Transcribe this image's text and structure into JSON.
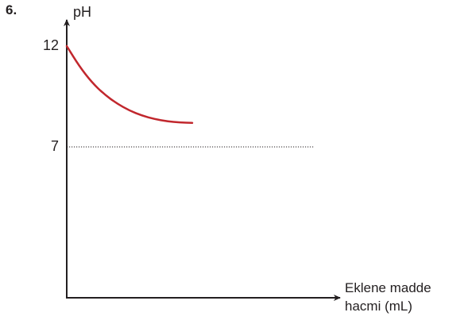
{
  "question_number": "6.",
  "chart_data": {
    "type": "line",
    "ylabel": "pH",
    "xlabel_lines": [
      "Eklene madde",
      "hacmi (mL)"
    ],
    "y_ticks": [
      {
        "value": 12,
        "label": "12"
      },
      {
        "value": 7,
        "label": "7"
      }
    ],
    "reference_line": {
      "y": 7,
      "style": "dotted"
    },
    "series": [
      {
        "color": "#c1272d",
        "x": [
          0,
          1,
          2,
          3,
          4,
          5,
          6,
          7,
          8,
          9,
          10
        ],
        "y": [
          12.0,
          11.0,
          10.2,
          9.6,
          9.15,
          8.8,
          8.55,
          8.38,
          8.27,
          8.21,
          8.19
        ]
      }
    ]
  }
}
